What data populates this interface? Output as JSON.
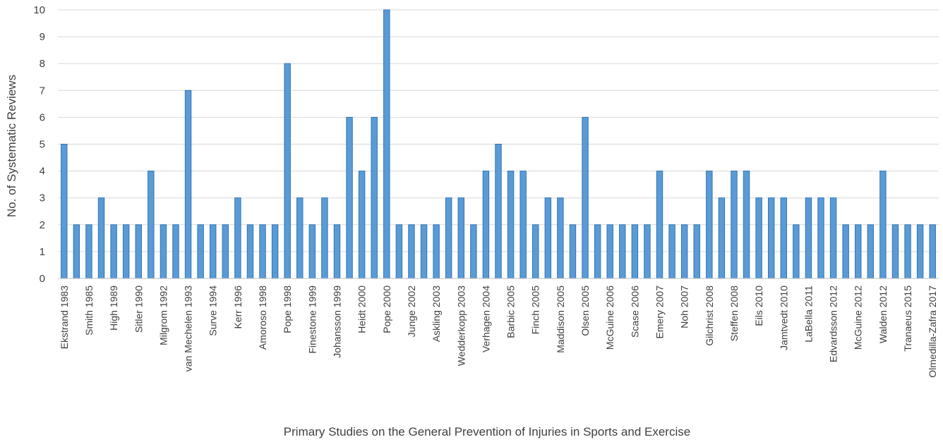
{
  "chart_data": {
    "type": "bar",
    "title": "",
    "xlabel": "Primary Studies on the General Prevention of Injuries in Sports and Exercise",
    "ylabel": "No. of Systematic Reviews",
    "ylim": [
      0,
      10
    ],
    "yticks": [
      0,
      1,
      2,
      3,
      4,
      5,
      6,
      7,
      8,
      9,
      10
    ],
    "grid": true,
    "legend": "none",
    "bar_color": "#5b9bd5",
    "bar_edge_color": "#2e75b6",
    "categories": [
      "Ekstrand 1983",
      "",
      "Smith 1985",
      "",
      "High 1989",
      "",
      "Sitler 1990",
      "",
      "Milgrom 1992",
      "",
      "van Mechelen 1993",
      "",
      "Surve 1994",
      "",
      "Kerr 1996",
      "",
      "Amoroso 1998",
      "",
      "Pope 1998",
      "",
      "Finestone 1999",
      "",
      "Johansson 1999",
      "",
      "Heidt 2000",
      "",
      "Pope 2000",
      "",
      "Junge 2002",
      "",
      "Askling 2003",
      "",
      "Wedderkopp 2003",
      "",
      "Verhagen 2004",
      "",
      "Barbic 2005",
      "",
      "Finch 2005",
      "",
      "Maddison 2005",
      "",
      "Olsen 2005",
      "",
      "McGuine 2006",
      "",
      "Scase 2006",
      "",
      "Emery 2007",
      "",
      "Noh 2007",
      "",
      "Gilchrist 2008",
      "",
      "Steffen 2008",
      "",
      "Eils 2010",
      "",
      "Jamtvedt 2010",
      "",
      "LaBella 2011",
      "",
      "Edvardsson 2012",
      "",
      "McGuine 2012",
      "",
      "Walden 2012",
      "",
      "Tranaeus 2015",
      "",
      "Olmedilla-Zafra 2017"
    ],
    "values": [
      5,
      2,
      2,
      3,
      2,
      2,
      2,
      4,
      2,
      2,
      7,
      2,
      2,
      2,
      3,
      2,
      2,
      2,
      8,
      3,
      2,
      3,
      2,
      6,
      4,
      6,
      10,
      2,
      2,
      2,
      2,
      3,
      3,
      2,
      4,
      5,
      4,
      4,
      2,
      3,
      3,
      2,
      6,
      2,
      2,
      2,
      2,
      2,
      4,
      2,
      2,
      2,
      4,
      3,
      4,
      4,
      3,
      3,
      3,
      2,
      3,
      3,
      3,
      2,
      2,
      2,
      4,
      2,
      2,
      2,
      2
    ]
  }
}
